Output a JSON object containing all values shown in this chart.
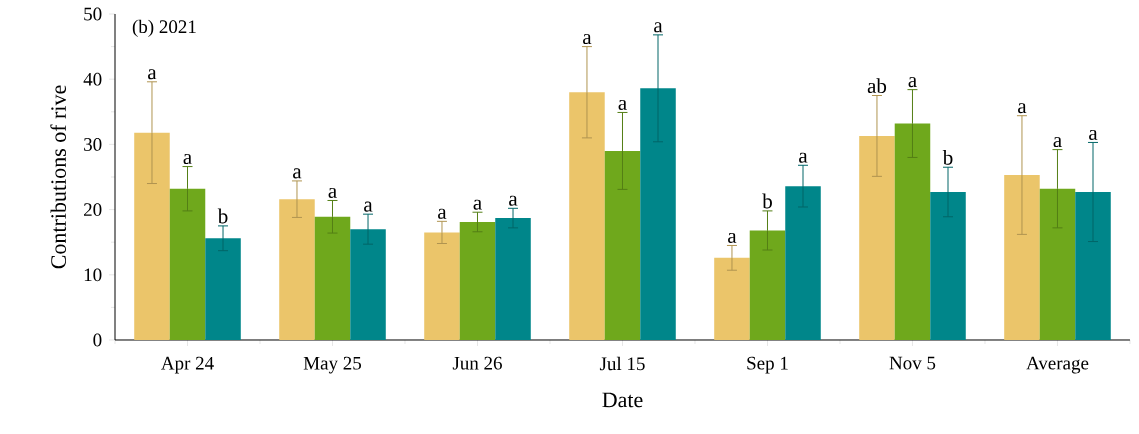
{
  "chart_data": {
    "type": "bar",
    "title": "(b) 2021",
    "xlabel": "Date",
    "ylabel": "Contributions of rive",
    "categories": [
      "Apr 24",
      "May 25",
      "Jun 26",
      "Jul 15",
      "Sep 1",
      "Nov 5",
      "Average"
    ],
    "series": [
      {
        "color": "#ebc56a",
        "values": [
          31.8,
          21.6,
          16.5,
          38.0,
          12.6,
          31.3,
          25.3
        ],
        "errors": [
          7.8,
          2.8,
          1.7,
          7.0,
          1.9,
          6.2,
          9.1
        ],
        "value_labels": [
          "a",
          "a",
          "a",
          "a",
          "a",
          "ab",
          "a"
        ]
      },
      {
        "color": "#6fa81c",
        "values": [
          23.2,
          18.9,
          18.1,
          29.0,
          16.8,
          33.2,
          23.2
        ],
        "errors": [
          3.4,
          2.5,
          1.5,
          5.9,
          3.0,
          5.2,
          6.0
        ],
        "value_labels": [
          "a",
          "a",
          "a",
          "a",
          "b",
          "a",
          "a"
        ]
      },
      {
        "color": "#00868a",
        "values": [
          15.6,
          17.0,
          18.7,
          38.6,
          23.6,
          22.7,
          22.7
        ],
        "errors": [
          1.9,
          2.3,
          1.5,
          8.2,
          3.2,
          3.8,
          7.6
        ],
        "value_labels": [
          "b",
          "a",
          "a",
          "a",
          "a",
          "b",
          "a"
        ]
      }
    ],
    "ylim": [
      0,
      50
    ],
    "yticks": [
      0,
      10,
      20,
      30,
      40,
      50
    ],
    "grid": false
  }
}
